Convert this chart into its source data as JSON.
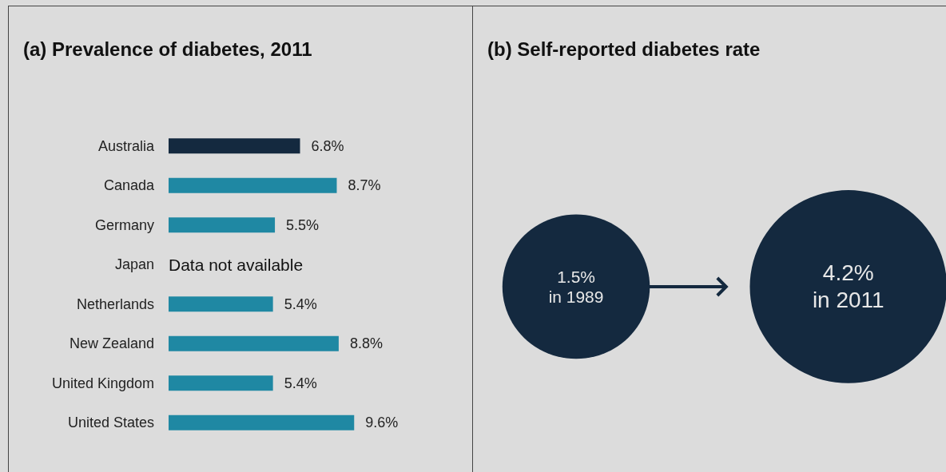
{
  "chart_data": [
    {
      "type": "bar",
      "orientation": "horizontal",
      "title": "(a) Prevalence of diabetes, 2011",
      "categories": [
        "Australia",
        "Canada",
        "Germany",
        "Japan",
        "Netherlands",
        "New Zealand",
        "United Kingdom",
        "United States"
      ],
      "values": [
        6.8,
        8.7,
        5.5,
        null,
        5.4,
        8.8,
        5.4,
        9.6
      ],
      "colors": [
        "#14293f",
        "#1f88a3",
        "#1f88a3",
        "#1f88a3",
        "#1f88a3",
        "#1f88a3",
        "#1f88a3",
        "#1f88a3"
      ],
      "value_labels": [
        "6.8%",
        "8.7%",
        "5.5%",
        null,
        "5.4%",
        "8.8%",
        "5.4%",
        "9.6%"
      ],
      "annotations": [
        "Data not available"
      ]
    },
    {
      "type": "other",
      "title": "(b) Self-reported diabetes rate",
      "categories": [
        "in 1989",
        "in 2011"
      ],
      "values": [
        1.5,
        4.2
      ],
      "color": "#14293f",
      "value_labels": [
        "1.5%",
        "4.2%"
      ]
    }
  ]
}
